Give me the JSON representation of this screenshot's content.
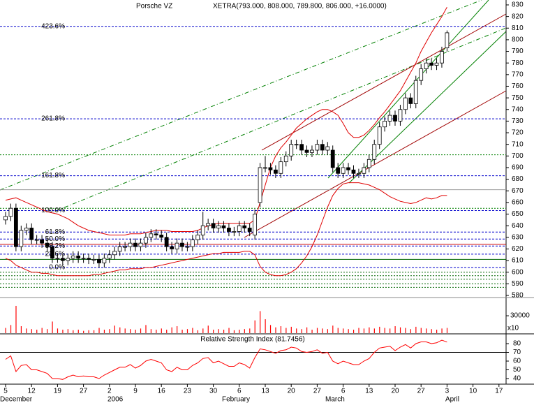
{
  "chart_data": [
    {
      "type": "candlestick",
      "title": "Porsche VZ",
      "subtitle": "XETRA(793.000, 808.000, 789.800, 806.000, +16.0000)",
      "categories": [
        "5",
        null,
        null,
        null,
        null,
        "12",
        null,
        null,
        null,
        null,
        "19",
        null,
        null,
        null,
        null,
        "27",
        null,
        null,
        null,
        null,
        "2",
        null,
        null,
        null,
        null,
        "9",
        null,
        null,
        null,
        null,
        "16",
        null,
        null,
        null,
        null,
        "23",
        null,
        null,
        null,
        null,
        "30",
        null,
        null,
        null,
        null,
        "6",
        null,
        null,
        null,
        null,
        "13",
        null,
        null,
        null,
        null,
        "20",
        null,
        null,
        null,
        null,
        "27",
        null,
        null,
        null,
        null,
        "6",
        null,
        null,
        null,
        null,
        "13",
        null,
        null,
        null,
        null,
        "20",
        null,
        null,
        null,
        null,
        "27",
        null,
        null,
        null,
        null,
        "3",
        null,
        null,
        null,
        null,
        "10",
        null,
        null,
        null,
        null,
        "17"
      ],
      "months": [
        "December",
        "2006",
        "February",
        "March",
        "April"
      ],
      "open": [
        645,
        648,
        655,
        622,
        636,
        638,
        628,
        628,
        625,
        622,
        612,
        612,
        610,
        612,
        614,
        612,
        612,
        611,
        611,
        608,
        612,
        615,
        618,
        622,
        622,
        625,
        622,
        625,
        630,
        633,
        632,
        630,
        622,
        620,
        625,
        622,
        622,
        628,
        632,
        640,
        642,
        638,
        640,
        638,
        635,
        635,
        640,
        638,
        632,
        660,
        690,
        690,
        688,
        685,
        695,
        700,
        710,
        710,
        705,
        703,
        705,
        710,
        705,
        705,
        690,
        685,
        690,
        688,
        685,
        685,
        690,
        697,
        710,
        725,
        730,
        735,
        730,
        740,
        750,
        745,
        765,
        775,
        780,
        778,
        780,
        793,
        null,
        null,
        null,
        null,
        null,
        null,
        null,
        null,
        null,
        null
      ],
      "high": [
        652,
        659,
        659,
        640,
        642,
        642,
        632,
        632,
        629,
        626,
        616,
        616,
        616,
        618,
        618,
        616,
        616,
        615,
        615,
        616,
        619,
        622,
        626,
        626,
        629,
        629,
        629,
        634,
        637,
        637,
        636,
        634,
        626,
        629,
        629,
        626,
        632,
        636,
        652,
        646,
        646,
        644,
        644,
        642,
        639,
        644,
        644,
        642,
        654,
        694,
        700,
        694,
        692,
        699,
        704,
        714,
        714,
        714,
        709,
        709,
        714,
        714,
        712,
        709,
        694,
        694,
        694,
        692,
        689,
        694,
        701,
        714,
        729,
        734,
        739,
        739,
        744,
        754,
        754,
        769,
        779,
        784,
        784,
        784,
        794,
        808,
        null,
        null,
        null,
        null,
        null,
        null,
        null,
        null,
        null,
        null
      ],
      "low": [
        641,
        644,
        618,
        618,
        632,
        624,
        624,
        621,
        618,
        608,
        608,
        606,
        606,
        608,
        608,
        608,
        607,
        607,
        604,
        604,
        608,
        611,
        614,
        618,
        618,
        618,
        618,
        621,
        626,
        628,
        626,
        618,
        616,
        616,
        618,
        618,
        618,
        624,
        628,
        636,
        634,
        634,
        634,
        631,
        631,
        631,
        634,
        631,
        628,
        656,
        686,
        684,
        681,
        681,
        691,
        696,
        706,
        701,
        699,
        699,
        701,
        701,
        701,
        686,
        681,
        681,
        684,
        681,
        681,
        681,
        686,
        693,
        706,
        721,
        726,
        726,
        726,
        736,
        741,
        741,
        761,
        771,
        774,
        774,
        776,
        789.8,
        null,
        null,
        null,
        null,
        null,
        null,
        null,
        null,
        null,
        null
      ],
      "close": [
        648,
        655,
        622,
        636,
        638,
        628,
        628,
        625,
        622,
        612,
        612,
        610,
        612,
        614,
        612,
        612,
        611,
        611,
        608,
        612,
        615,
        618,
        622,
        622,
        625,
        622,
        625,
        630,
        633,
        632,
        630,
        622,
        620,
        625,
        622,
        622,
        628,
        632,
        640,
        642,
        638,
        640,
        638,
        635,
        635,
        640,
        638,
        635,
        650,
        690,
        690,
        688,
        685,
        695,
        700,
        710,
        710,
        705,
        703,
        705,
        710,
        705,
        708,
        690,
        685,
        690,
        688,
        685,
        685,
        690,
        697,
        710,
        725,
        730,
        735,
        730,
        740,
        750,
        745,
        765,
        775,
        780,
        778,
        780,
        790,
        806,
        null,
        null,
        null,
        null,
        null,
        null,
        null,
        null,
        null,
        null
      ],
      "bands": [
        {
          "color": "#e00000",
          "values": [
            662,
            663,
            664,
            662,
            660,
            658,
            656,
            654,
            652,
            651,
            650,
            648,
            646,
            643,
            640,
            638,
            636,
            635,
            634,
            633,
            632,
            632,
            632,
            632,
            633,
            633,
            633,
            634,
            635,
            636,
            636,
            636,
            635,
            635,
            635,
            635,
            635,
            636,
            638,
            640,
            641,
            642,
            642,
            642,
            642,
            642,
            642,
            642,
            645,
            660,
            675,
            690,
            700,
            707,
            712,
            718,
            724,
            728,
            732,
            735,
            738,
            740,
            740,
            738,
            735,
            728,
            720,
            716,
            716,
            718,
            722,
            727,
            733,
            738,
            744,
            750,
            756,
            764,
            772,
            780,
            790,
            798,
            806,
            813,
            820,
            828,
            null,
            null,
            null,
            null,
            null,
            null,
            null,
            null,
            null,
            null
          ]
        },
        {
          "color": "#e00000",
          "values": [
            612,
            610,
            606,
            604,
            602,
            600,
            600,
            599,
            599,
            598,
            597,
            597,
            597,
            597,
            597,
            597,
            597,
            598,
            598,
            599,
            600,
            601,
            602,
            602,
            603,
            603,
            603,
            604,
            604,
            605,
            606,
            607,
            608,
            609,
            610,
            611,
            612,
            613,
            614,
            615,
            616,
            616,
            617,
            617,
            617,
            617,
            618,
            618,
            615,
            605,
            600,
            598,
            597,
            597,
            598,
            600,
            603,
            608,
            614,
            622,
            632,
            644,
            656,
            666,
            672,
            676,
            677,
            677,
            677,
            676,
            675,
            673,
            671,
            668,
            665,
            663,
            661,
            660,
            659,
            660,
            662,
            664,
            663,
            664,
            666,
            666,
            null,
            null,
            null,
            null,
            null,
            null,
            null,
            null,
            null,
            null
          ]
        }
      ],
      "fib_levels": [
        {
          "value": 811.5,
          "label": "423.6%"
        },
        {
          "value": 732,
          "label": "261.8%"
        },
        {
          "value": 683,
          "label": "161.8%"
        },
        {
          "value": 653,
          "label": "100.0%"
        },
        {
          "value": 634.5,
          "label": "61.8%"
        },
        {
          "value": 628.5,
          "label": "50.0%"
        },
        {
          "value": 622.5,
          "label": "38.2%"
        },
        {
          "value": 615.5,
          "label": "23.6%"
        },
        {
          "value": 604,
          "label": "0.0%"
        }
      ],
      "fib_color": "#0000cc",
      "levels": [
        {
          "value": 701,
          "color": "#008000",
          "style": "dotted"
        },
        {
          "value": 671,
          "color": "#999999",
          "style": "solid"
        },
        {
          "value": 655,
          "color": "#008000",
          "style": "dotted"
        },
        {
          "value": 624,
          "color": "#cc0000",
          "style": "solid"
        },
        {
          "value": 611,
          "color": "#006600",
          "style": "solid"
        },
        {
          "value": 600,
          "color": "#006600",
          "style": "dotted"
        },
        {
          "value": 597,
          "color": "#006600",
          "style": "dotted"
        },
        {
          "value": 594,
          "color": "#006600",
          "style": "dotted"
        },
        {
          "value": 590,
          "color": "#006600",
          "style": "dotted"
        },
        {
          "value": 587,
          "color": "#006600",
          "style": "dotted"
        }
      ],
      "ylim": [
        578.8,
        834.2
      ],
      "yticks": [
        830,
        820,
        810,
        800,
        790,
        780,
        770,
        760,
        750,
        740,
        730,
        720,
        710,
        700,
        690,
        680,
        670,
        660,
        650,
        640,
        630,
        620,
        610,
        600,
        590,
        580
      ]
    },
    {
      "type": "bar",
      "values": [
        9000,
        14000,
        47000,
        12000,
        8000,
        7000,
        6000,
        9000,
        7000,
        20000,
        8000,
        6000,
        7000,
        5000,
        6000,
        4000,
        5000,
        5000,
        9000,
        6000,
        7000,
        13000,
        10000,
        8000,
        7000,
        6000,
        8000,
        14000,
        7000,
        6000,
        8000,
        6000,
        10000,
        12000,
        6000,
        7000,
        9000,
        5000,
        8000,
        13000,
        6000,
        7000,
        6000,
        9000,
        5000,
        6000,
        7000,
        8000,
        22000,
        38000,
        24000,
        14000,
        10000,
        12000,
        9000,
        11000,
        8000,
        7000,
        10000,
        6000,
        9000,
        8000,
        7000,
        13000,
        9000,
        8000,
        7000,
        6000,
        9000,
        8000,
        10000,
        8000,
        11000,
        9000,
        8000,
        12000,
        10000,
        9000,
        7000,
        11000,
        9000,
        8000,
        7000,
        6000,
        8000,
        9000,
        null,
        null,
        null,
        null,
        null,
        null,
        null,
        null,
        null,
        null
      ],
      "color": "#ff0000",
      "ylim": [
        0,
        59000
      ],
      "yticks": [
        30000
      ],
      "scale_label": "x10"
    },
    {
      "type": "line",
      "title": "Relative Strength Index (81.7456)",
      "values": [
        62,
        66,
        48,
        55,
        56,
        50,
        50,
        48,
        46,
        40,
        40,
        39,
        42,
        44,
        42,
        43,
        42,
        42,
        40,
        44,
        47,
        50,
        53,
        53,
        56,
        52,
        55,
        60,
        62,
        60,
        58,
        50,
        48,
        53,
        50,
        50,
        55,
        58,
        63,
        64,
        58,
        60,
        57,
        54,
        54,
        58,
        56,
        52,
        64,
        74,
        73,
        71,
        69,
        72,
        73,
        76,
        75,
        71,
        70,
        71,
        73,
        69,
        70,
        60,
        57,
        60,
        58,
        56,
        56,
        60,
        63,
        70,
        75,
        76,
        77,
        72,
        76,
        79,
        75,
        80,
        82,
        82,
        80,
        81,
        84,
        81.7456,
        null,
        null,
        null,
        null,
        null,
        null,
        null,
        null,
        null,
        null
      ],
      "color": "#ff0000",
      "hline": 70,
      "ylim": [
        35.2,
        89.6
      ],
      "yticks": [
        80,
        70,
        60,
        50,
        40
      ]
    }
  ]
}
